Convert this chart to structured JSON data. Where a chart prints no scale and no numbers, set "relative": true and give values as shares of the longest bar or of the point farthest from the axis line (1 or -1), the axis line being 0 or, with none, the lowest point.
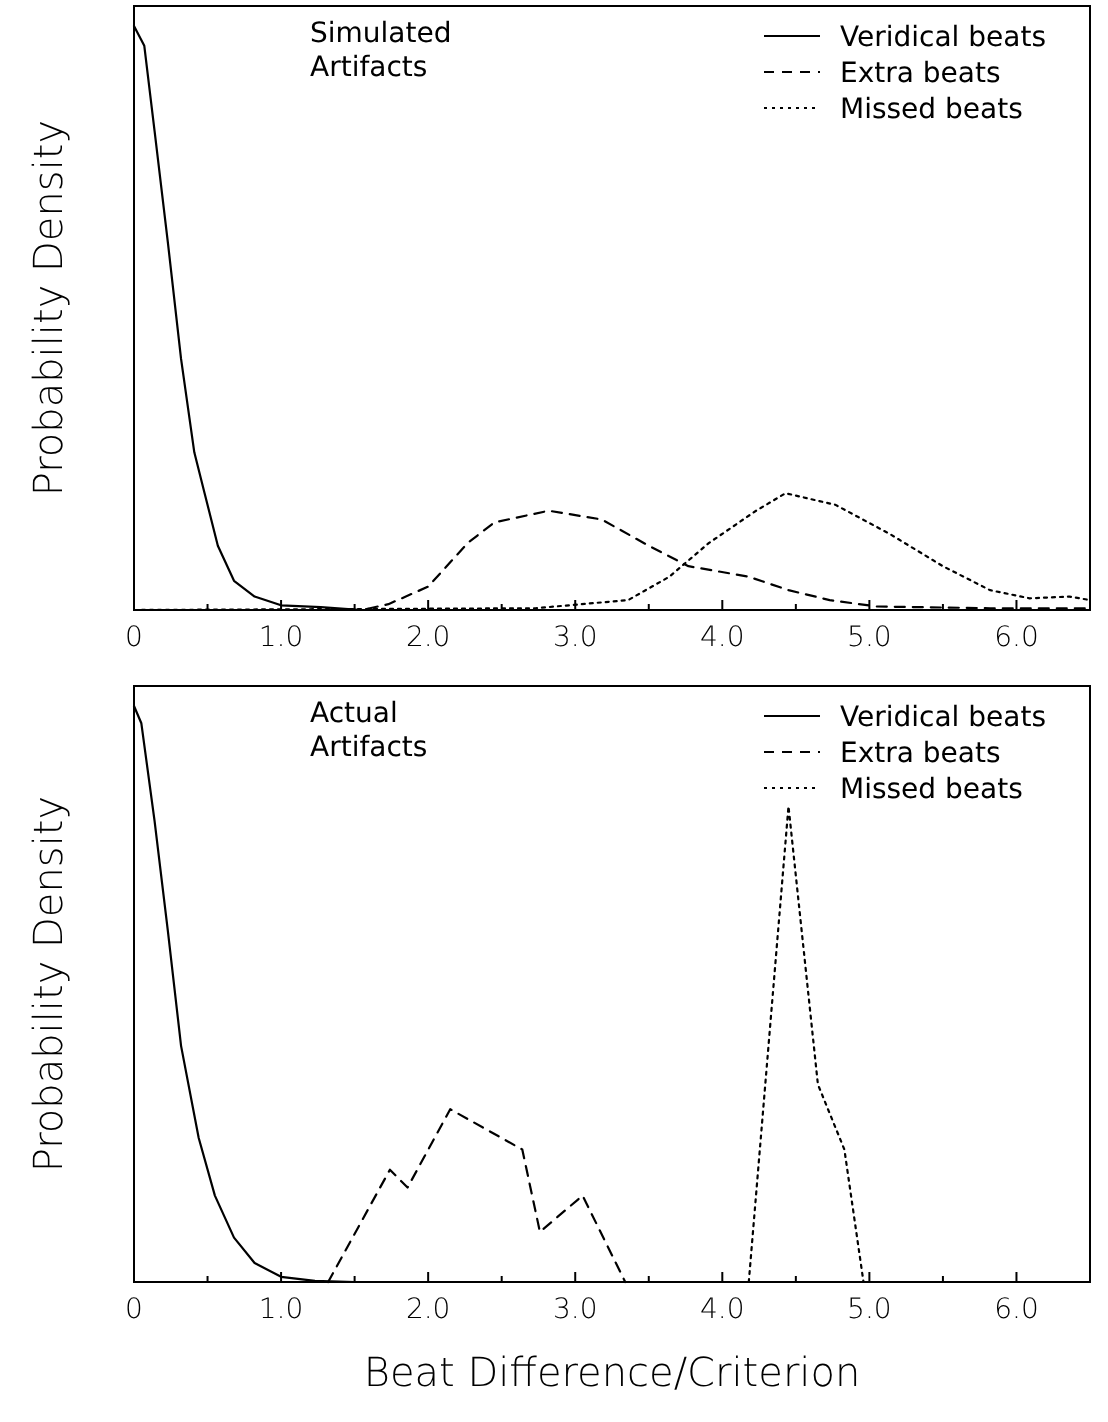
{
  "chart_data": [
    {
      "type": "line",
      "title": "Simulated\nArtifacts",
      "ylabel": "Probability Density",
      "relative": true,
      "legend": "top right",
      "xlim": [
        0,
        6.5
      ],
      "xticks": [
        0,
        {
          "value": 0.5,
          "label": null
        },
        {
          "value": 1,
          "label": "1.0"
        },
        {
          "value": 1.5,
          "label": null
        },
        {
          "value": 2,
          "label": "2.0"
        },
        {
          "value": 2.5,
          "label": null
        },
        {
          "value": 3,
          "label": "3.0"
        },
        {
          "value": 3.5,
          "label": null
        },
        {
          "value": 4,
          "label": "4.0"
        },
        {
          "value": 4.5,
          "label": null
        },
        {
          "value": 5,
          "label": "5.0"
        },
        {
          "value": 5.5,
          "label": null
        },
        {
          "value": 6,
          "label": "6.0"
        }
      ],
      "series": [
        {
          "name": "Veridical beats",
          "color": "#000000",
          "line_style": "solid",
          "x": [
            0,
            0.07,
            0.14,
            0.23,
            0.32,
            0.41,
            0.48,
            0.57,
            0.68,
            0.82,
            1.0,
            1.27,
            1.55,
            6.5
          ],
          "values": [
            1,
            0.966,
            0.82,
            0.63,
            0.43,
            0.27,
            0.2,
            0.11,
            0.05,
            0.023,
            0.008,
            0.005,
            0,
            0
          ]
        },
        {
          "name": "Extra beats",
          "color": "#000000",
          "line_style": "dashed",
          "x": [
            0,
            1.55,
            1.73,
            2.0,
            2.27,
            2.45,
            2.82,
            3.18,
            3.5,
            3.77,
            4.18,
            4.45,
            4.73,
            5.05,
            5.82,
            6.5
          ],
          "values": [
            0,
            0,
            0.01,
            0.04,
            0.115,
            0.15,
            0.17,
            0.155,
            0.11,
            0.075,
            0.057,
            0.034,
            0.017,
            0.006,
            0.003,
            0.003
          ]
        },
        {
          "name": "Missed beats",
          "color": "#000000",
          "line_style": "dotted",
          "x": [
            0,
            2.73,
            3.36,
            3.64,
            3.91,
            4.23,
            4.43,
            4.77,
            5.14,
            5.5,
            5.82,
            6.09,
            6.36,
            6.5
          ],
          "values": [
            0,
            0.003,
            0.017,
            0.057,
            0.115,
            0.17,
            0.2,
            0.18,
            0.13,
            0.075,
            0.034,
            0.02,
            0.023,
            0.017
          ]
        }
      ]
    },
    {
      "type": "line",
      "title": "Actual\nArtifacts",
      "ylabel": "Probability Density",
      "xlabel": "Beat Difference/Criterion",
      "relative": true,
      "legend": "top right",
      "xlim": [
        0,
        6.5
      ],
      "xticks": [
        0,
        {
          "value": 0.5,
          "label": null
        },
        {
          "value": 1,
          "label": "1.0"
        },
        {
          "value": 1.5,
          "label": null
        },
        {
          "value": 2,
          "label": "2.0"
        },
        {
          "value": 2.5,
          "label": null
        },
        {
          "value": 3,
          "label": "3.0"
        },
        {
          "value": 3.5,
          "label": null
        },
        {
          "value": 4,
          "label": "4.0"
        },
        {
          "value": 4.5,
          "label": null
        },
        {
          "value": 5,
          "label": "5.0"
        },
        {
          "value": 5.5,
          "label": null
        },
        {
          "value": 6,
          "label": "6.0"
        }
      ],
      "series": [
        {
          "name": "Veridical beats",
          "color": "#000000",
          "line_style": "solid",
          "x": [
            0,
            0.05,
            0.14,
            0.23,
            0.32,
            0.44,
            0.55,
            0.68,
            0.82,
            1.0,
            1.23,
            1.5,
            6.5
          ],
          "values": [
            1,
            0.97,
            0.8,
            0.61,
            0.41,
            0.25,
            0.15,
            0.077,
            0.033,
            0.009,
            0.002,
            0,
            0
          ]
        },
        {
          "name": "Extra beats",
          "color": "#000000",
          "line_style": "dashed",
          "x": [
            1.32,
            1.74,
            1.86,
            2.15,
            2.64,
            2.76,
            3.05,
            3.34
          ],
          "values": [
            0,
            0.195,
            0.164,
            0.3,
            0.23,
            0.087,
            0.15,
            0
          ]
        },
        {
          "name": "Missed beats",
          "color": "#000000",
          "line_style": "dotted",
          "x": [
            4.18,
            4.45,
            4.65,
            4.83,
            4.96
          ],
          "values": [
            0,
            0.826,
            0.343,
            0.23,
            0
          ]
        }
      ]
    }
  ]
}
